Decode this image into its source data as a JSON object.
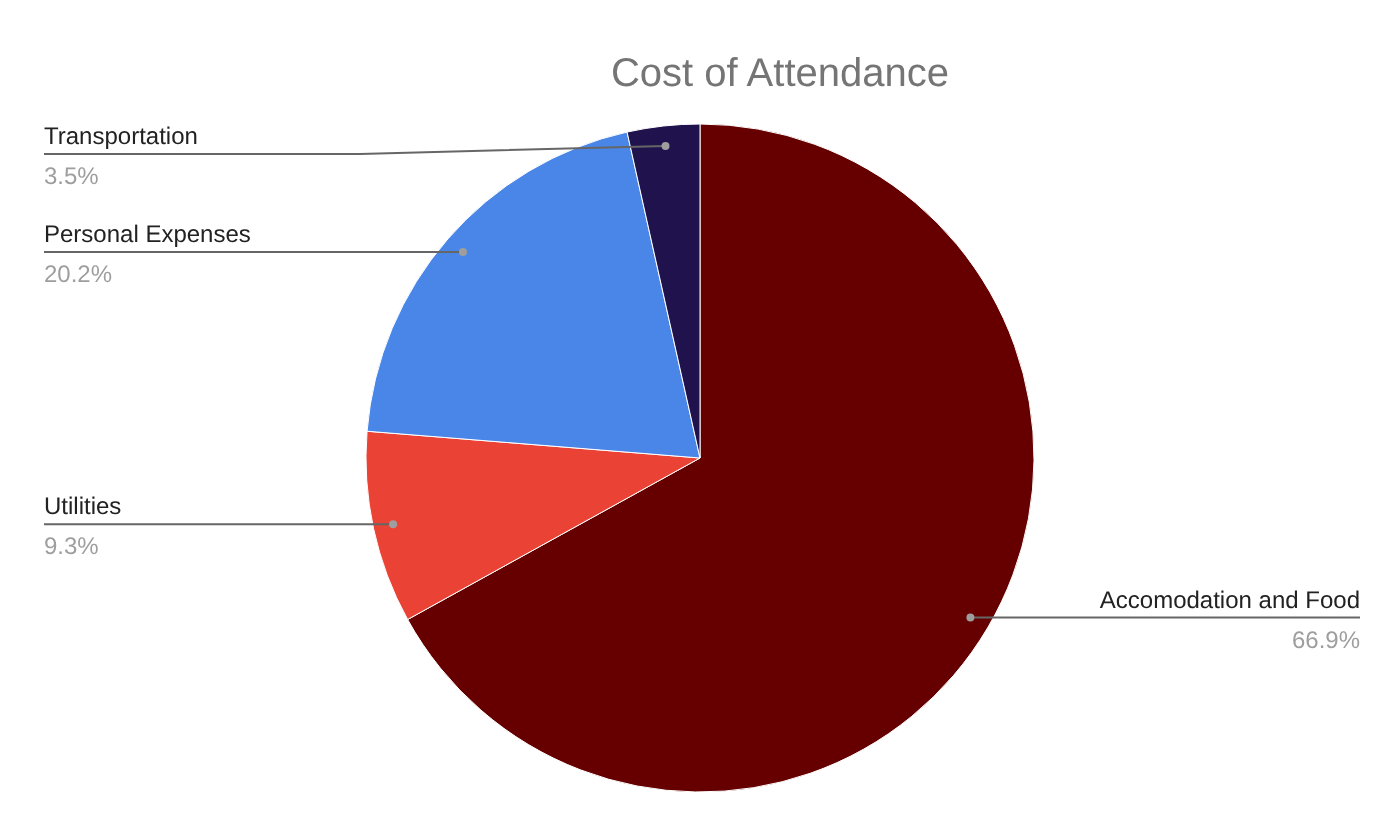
{
  "chart_data": {
    "type": "pie",
    "title": "Cost of Attendance",
    "categories": [
      "Accomodation and Food",
      "Utilities",
      "Personal Expenses",
      "Transportation"
    ],
    "values": [
      66.9,
      9.3,
      20.2,
      3.5
    ],
    "value_labels": [
      "66.9%",
      "9.3%",
      "20.2%",
      "3.5%"
    ],
    "colors": [
      "#660000",
      "#ea4335",
      "#4a86e8",
      "#20124d"
    ]
  }
}
